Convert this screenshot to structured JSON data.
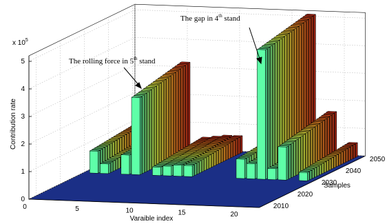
{
  "chart_data": {
    "type": "bar3d",
    "zlabel": "Contribution rate",
    "xlabel": "Varaible index",
    "ylabel": "Samples",
    "multiplier": {
      "base": "x 10",
      "exp": "5"
    },
    "annotations": [
      {
        "text": "The rolling force in 5",
        "sup": "th",
        "after": " stand"
      },
      {
        "text": "The gap in 4",
        "sup": "th",
        "after": " stand"
      }
    ],
    "xlim": [
      0,
      22
    ],
    "xticks": [
      0,
      5,
      10,
      15,
      20
    ],
    "ylim": [
      2007,
      2051
    ],
    "yticks": [
      2010,
      2020,
      2030,
      2040,
      2050
    ],
    "zlim": [
      0,
      5.2
    ],
    "zticks": [
      0,
      1,
      2,
      3,
      4,
      5
    ],
    "grid": true,
    "floor_color": "#1b2f86",
    "colormap": [
      "#5effa8",
      "#e8ff48",
      "#ff9a28",
      "#d8301a"
    ],
    "samples": [
      2030,
      2031,
      2032,
      2033,
      2034,
      2035,
      2036,
      2037,
      2038,
      2039,
      2040,
      2041,
      2042,
      2043,
      2044,
      2045,
      2046,
      2047,
      2048,
      2049,
      2050
    ],
    "series": [
      {
        "index": 1,
        "values": [
          0.8,
          0.81,
          0.82,
          0.83,
          0.84,
          0.85,
          0.86,
          0.87,
          0.88,
          0.89,
          0.9,
          0.91,
          0.92,
          0.93,
          0.94,
          0.95,
          0.96,
          0.97,
          0.98,
          0.99,
          1.0
        ]
      },
      {
        "index": 2,
        "values": [
          0.35,
          0.36,
          0.37,
          0.38,
          0.39,
          0.4,
          0.41,
          0.42,
          0.43,
          0.44,
          0.45,
          0.46,
          0.47,
          0.48,
          0.49,
          0.5,
          0.51,
          0.52,
          0.53,
          0.54,
          0.55
        ]
      },
      {
        "index": 4,
        "values": [
          0.7,
          0.71,
          0.72,
          0.73,
          0.74,
          0.75,
          0.76,
          0.77,
          0.78,
          0.79,
          0.8,
          0.81,
          0.82,
          0.83,
          0.84,
          0.85,
          0.86,
          0.87,
          0.88,
          0.89,
          0.9
        ]
      },
      {
        "index": 5,
        "values": [
          2.8,
          2.82,
          2.84,
          2.86,
          2.88,
          2.9,
          2.92,
          2.94,
          2.96,
          2.98,
          3.0,
          3.02,
          3.04,
          3.06,
          3.08,
          3.1,
          3.12,
          3.14,
          3.16,
          3.18,
          3.2
        ]
      },
      {
        "index": 7,
        "values": [
          0.3,
          0.31,
          0.32,
          0.33,
          0.34,
          0.35,
          0.36,
          0.37,
          0.38,
          0.39,
          0.4,
          0.41,
          0.42,
          0.43,
          0.44,
          0.45,
          0.46,
          0.47,
          0.48,
          0.49,
          0.5
        ]
      },
      {
        "index": 8,
        "values": [
          0.35,
          0.36,
          0.37,
          0.38,
          0.39,
          0.4,
          0.41,
          0.42,
          0.43,
          0.44,
          0.45,
          0.46,
          0.47,
          0.48,
          0.49,
          0.5,
          0.51,
          0.52,
          0.53,
          0.54,
          0.55
        ]
      },
      {
        "index": 9,
        "values": [
          0.4,
          0.41,
          0.42,
          0.43,
          0.44,
          0.45,
          0.46,
          0.47,
          0.48,
          0.49,
          0.5,
          0.51,
          0.52,
          0.53,
          0.54,
          0.55,
          0.56,
          0.57,
          0.58,
          0.59,
          0.6
        ]
      },
      {
        "index": 10,
        "values": [
          0.4,
          0.41,
          0.42,
          0.43,
          0.44,
          0.45,
          0.46,
          0.47,
          0.48,
          0.49,
          0.5,
          0.51,
          0.52,
          0.53,
          0.54,
          0.55,
          0.56,
          0.57,
          0.58,
          0.59,
          0.6
        ]
      },
      {
        "index": 15,
        "values": [
          0.7,
          0.71,
          0.72,
          0.73,
          0.74,
          0.75,
          0.76,
          0.77,
          0.78,
          0.79,
          0.8,
          0.81,
          0.82,
          0.83,
          0.84,
          0.85,
          0.86,
          0.87,
          0.88,
          0.89,
          0.9
        ]
      },
      {
        "index": 16,
        "values": [
          0.55,
          0.56,
          0.57,
          0.58,
          0.59,
          0.6,
          0.61,
          0.62,
          0.63,
          0.64,
          0.65,
          0.66,
          0.67,
          0.68,
          0.69,
          0.7,
          0.71,
          0.72,
          0.73,
          0.74,
          0.75
        ]
      },
      {
        "index": 17,
        "values": [
          4.7,
          4.72,
          4.74,
          4.76,
          4.78,
          4.8,
          4.82,
          4.84,
          4.86,
          4.88,
          4.9,
          4.92,
          4.94,
          4.96,
          4.98,
          5.0,
          5.02,
          5.04,
          5.06,
          5.08,
          5.1
        ]
      },
      {
        "index": 18,
        "values": [
          0.4,
          0.41,
          0.42,
          0.43,
          0.44,
          0.45,
          0.46,
          0.47,
          0.48,
          0.49,
          0.5,
          0.51,
          0.52,
          0.53,
          0.54,
          0.55,
          0.56,
          0.57,
          0.58,
          0.59,
          0.6
        ]
      },
      {
        "index": 19,
        "values": [
          1.2,
          1.22,
          1.24,
          1.26,
          1.28,
          1.3,
          1.32,
          1.34,
          1.36,
          1.38,
          1.4,
          1.42,
          1.44,
          1.46,
          1.48,
          1.5,
          1.52,
          1.54,
          1.56,
          1.58,
          1.6
        ]
      },
      {
        "index": 21,
        "values": [
          0.3,
          0.31,
          0.32,
          0.33,
          0.34,
          0.35,
          0.36,
          0.37,
          0.38,
          0.39,
          0.4,
          0.41,
          0.42,
          0.43,
          0.44,
          0.45,
          0.46,
          0.47,
          0.48,
          0.49,
          0.5
        ]
      }
    ]
  }
}
